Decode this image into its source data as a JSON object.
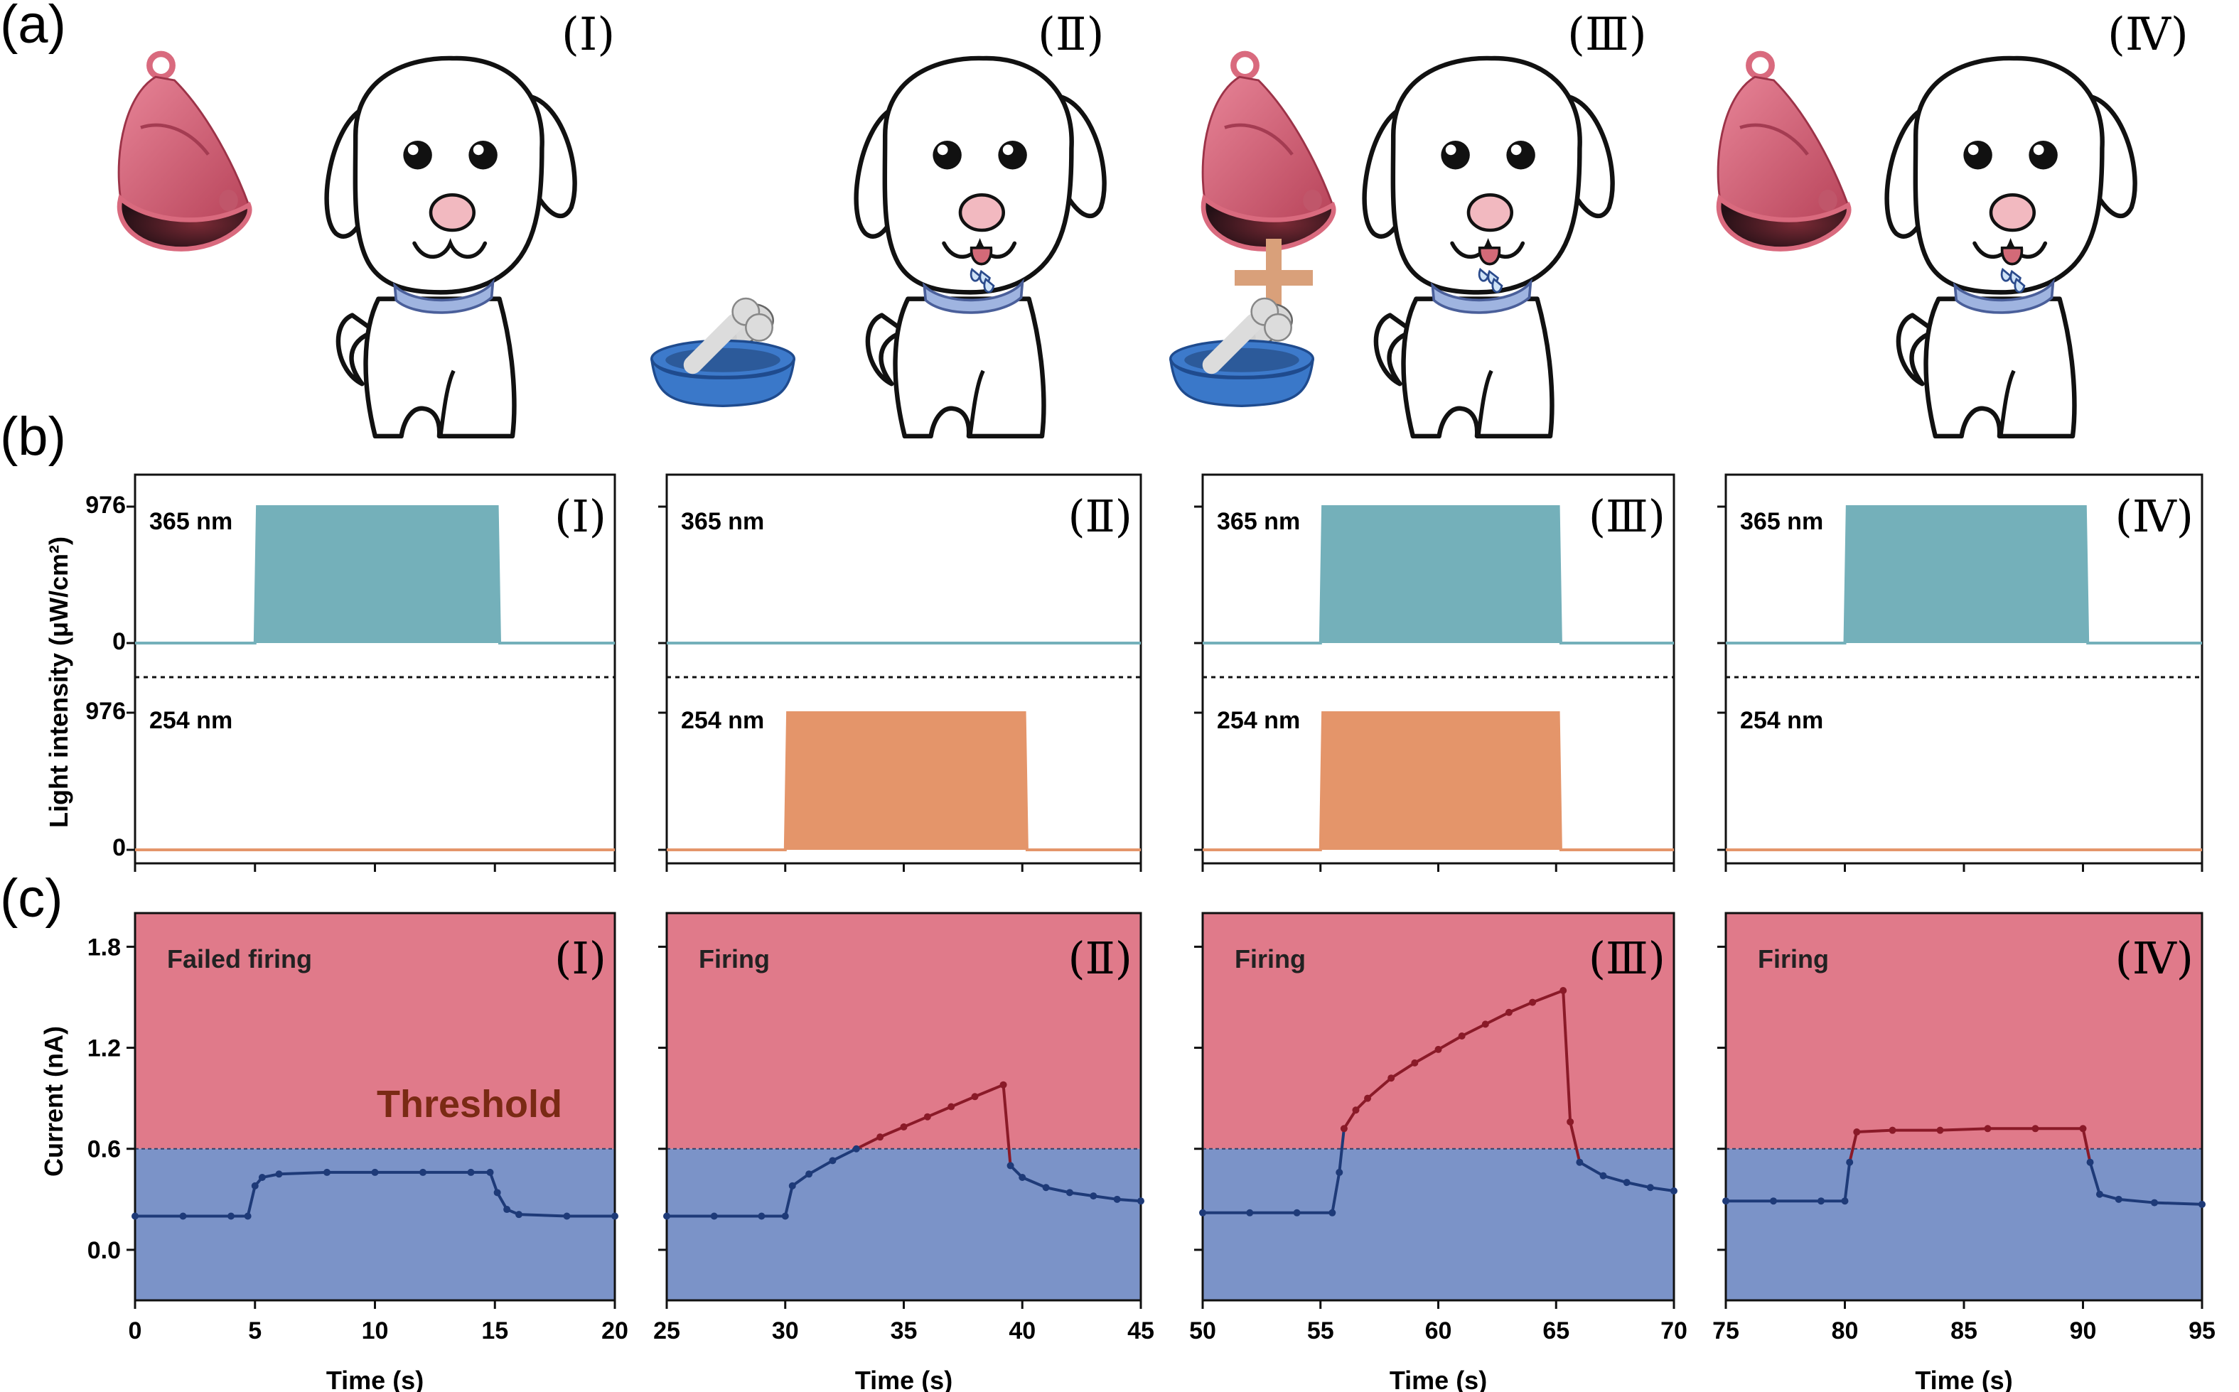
{
  "panel_labels": [
    "(a)",
    "(b)",
    "(c)"
  ],
  "colors": {
    "uv365": "#74B0BA",
    "uv254": "#E4956A",
    "above_threshold": "#E07A8A",
    "below_threshold": "#7B93C8",
    "trace_above": "#8A1A28",
    "trace_below": "#1E3A78",
    "threshold_text": "#7A2A14",
    "bell": "#D96A7E",
    "bowl": "#3A79C8",
    "plus": "#D9A07A"
  },
  "scenarios": [
    {
      "roman": "(Ⅰ)",
      "bell": true,
      "food": false,
      "salivating": false
    },
    {
      "roman": "(Ⅱ)",
      "bell": false,
      "food": true,
      "salivating": true
    },
    {
      "roman": "(Ⅲ)",
      "bell": true,
      "food": true,
      "salivating": true
    },
    {
      "roman": "(Ⅳ)",
      "bell": true,
      "food": false,
      "salivating": true
    }
  ],
  "light": {
    "ylabel": "Light intensity (μW/cm²)",
    "ticks": {
      "top_max": "976",
      "top_zero": "0",
      "bottom_max": "976",
      "bottom_zero": "0"
    },
    "label_365": "365 nm",
    "label_254": "254 nm"
  },
  "current": {
    "ylabel": "Current (nA)",
    "xlabel": "Time (s)",
    "threshold_label": "Threshold",
    "threshold": 0.6
  },
  "chart_data": [
    {
      "type": "area",
      "title": "Light intensity (Ⅰ)",
      "ylabel": "Light intensity (μW/cm²)",
      "series": [
        {
          "name": "365 nm",
          "x": [
            0,
            5,
            5.1,
            15.1,
            15.2,
            20
          ],
          "y": [
            0,
            0,
            976,
            976,
            0,
            0
          ]
        },
        {
          "name": "254 nm",
          "x": [
            0,
            20
          ],
          "y": [
            0,
            0
          ]
        }
      ]
    },
    {
      "type": "area",
      "title": "Light intensity (Ⅱ)",
      "series": [
        {
          "name": "365 nm",
          "x": [
            25,
            45
          ],
          "y": [
            0,
            0
          ]
        },
        {
          "name": "254 nm",
          "x": [
            25,
            30,
            30.1,
            40.1,
            40.2,
            45
          ],
          "y": [
            0,
            0,
            976,
            976,
            0,
            0
          ]
        }
      ]
    },
    {
      "type": "area",
      "title": "Light intensity (Ⅲ)",
      "series": [
        {
          "name": "365 nm",
          "x": [
            50,
            55,
            55.1,
            65.1,
            65.2,
            70
          ],
          "y": [
            0,
            0,
            976,
            976,
            0,
            0
          ]
        },
        {
          "name": "254 nm",
          "x": [
            50,
            55,
            55.1,
            65.1,
            65.2,
            70
          ],
          "y": [
            0,
            0,
            976,
            976,
            0,
            0
          ]
        }
      ]
    },
    {
      "type": "area",
      "title": "Light intensity (Ⅳ)",
      "series": [
        {
          "name": "365 nm",
          "x": [
            75,
            80,
            80.1,
            90.1,
            90.2,
            95
          ],
          "y": [
            0,
            0,
            976,
            976,
            0,
            0
          ]
        },
        {
          "name": "254 nm",
          "x": [
            75,
            95
          ],
          "y": [
            0,
            0
          ]
        }
      ]
    },
    {
      "type": "line",
      "title": "(Ⅰ) Failed firing",
      "xlabel": "Time (s)",
      "ylabel": "Current (nA)",
      "xlim": [
        0,
        20
      ],
      "ylim": [
        -0.3,
        2.0
      ],
      "xticks": [
        0,
        5,
        10,
        15,
        20
      ],
      "yticks": [
        0.0,
        0.6,
        1.2,
        1.8
      ],
      "status": "Failed firing",
      "x": [
        0,
        2,
        4,
        4.7,
        5.0,
        5.3,
        6,
        8,
        10,
        12,
        14,
        14.8,
        15.1,
        15.5,
        16,
        18,
        20
      ],
      "y": [
        0.2,
        0.2,
        0.2,
        0.2,
        0.38,
        0.43,
        0.45,
        0.46,
        0.46,
        0.46,
        0.46,
        0.46,
        0.34,
        0.24,
        0.21,
        0.2,
        0.2
      ]
    },
    {
      "type": "line",
      "title": "(Ⅱ) Firing",
      "xlabel": "Time (s)",
      "xlim": [
        25,
        45
      ],
      "ylim": [
        -0.3,
        2.0
      ],
      "xticks": [
        25,
        30,
        35,
        40,
        45
      ],
      "status": "Firing",
      "x": [
        25,
        27,
        29,
        30.0,
        30.3,
        31,
        32,
        33,
        34,
        35,
        36,
        37,
        38,
        39.2,
        39.5,
        40,
        41,
        42,
        43,
        44,
        45
      ],
      "y": [
        0.2,
        0.2,
        0.2,
        0.2,
        0.38,
        0.45,
        0.53,
        0.6,
        0.67,
        0.73,
        0.79,
        0.85,
        0.91,
        0.98,
        0.5,
        0.43,
        0.37,
        0.34,
        0.32,
        0.3,
        0.29
      ]
    },
    {
      "type": "line",
      "title": "(Ⅲ) Firing",
      "xlabel": "Time (s)",
      "xlim": [
        50,
        70
      ],
      "ylim": [
        -0.3,
        2.0
      ],
      "xticks": [
        50,
        55,
        60,
        65,
        70
      ],
      "status": "Firing",
      "x": [
        50,
        52,
        54,
        55.5,
        55.8,
        56.0,
        56.5,
        57,
        58,
        59,
        60,
        61,
        62,
        63,
        64,
        65.3,
        65.6,
        66,
        67,
        68,
        69,
        70
      ],
      "y": [
        0.22,
        0.22,
        0.22,
        0.22,
        0.46,
        0.72,
        0.83,
        0.9,
        1.02,
        1.11,
        1.19,
        1.27,
        1.34,
        1.41,
        1.47,
        1.54,
        0.76,
        0.52,
        0.44,
        0.4,
        0.37,
        0.35
      ]
    },
    {
      "type": "line",
      "title": "(Ⅳ) Firing",
      "xlabel": "Time (s)",
      "xlim": [
        75,
        95
      ],
      "ylim": [
        -0.3,
        2.0
      ],
      "xticks": [
        75,
        80,
        85,
        90,
        95
      ],
      "status": "Firing",
      "x": [
        75,
        77,
        79,
        80.0,
        80.2,
        80.5,
        82,
        84,
        86,
        88,
        90.0,
        90.3,
        90.7,
        91.5,
        93,
        95
      ],
      "y": [
        0.29,
        0.29,
        0.29,
        0.29,
        0.52,
        0.7,
        0.71,
        0.71,
        0.72,
        0.72,
        0.72,
        0.52,
        0.33,
        0.3,
        0.28,
        0.27
      ]
    }
  ]
}
